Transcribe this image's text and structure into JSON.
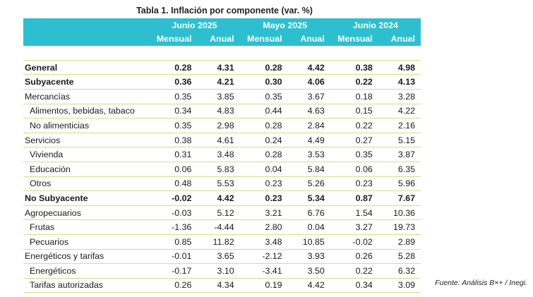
{
  "title": "Tabla 1. Inflación por componente (var. %)",
  "groups": [
    "Junio 2025",
    "Mayo 2025",
    "Junio 2024"
  ],
  "subheaders": [
    "Mensual",
    "Anual",
    "Mensual",
    "Anual",
    "Mensual",
    "Anual"
  ],
  "rows": [
    {
      "label": "General",
      "values": [
        "0.28",
        "4.31",
        "0.28",
        "4.42",
        "0.38",
        "4.98"
      ]
    },
    {
      "label": "Subyacente",
      "values": [
        "0.36",
        "4.21",
        "0.30",
        "4.06",
        "0.22",
        "4.13"
      ]
    },
    {
      "label": "Mercancías",
      "values": [
        "0.35",
        "3.85",
        "0.35",
        "3.67",
        "0.18",
        "3.28"
      ]
    },
    {
      "label": "Alimentos, bebidas, tabaco",
      "values": [
        "0.34",
        "4.83",
        "0.44",
        "4.63",
        "0.15",
        "4.22"
      ]
    },
    {
      "label": "No alimenticias",
      "values": [
        "0.35",
        "2.98",
        "0.28",
        "2.84",
        "0.22",
        "2.16"
      ]
    },
    {
      "label": "Servicios",
      "values": [
        "0.38",
        "4.61",
        "0.24",
        "4.49",
        "0.27",
        "5.15"
      ]
    },
    {
      "label": "Vivienda",
      "values": [
        "0.31",
        "3.48",
        "0.28",
        "3.53",
        "0.35",
        "3.87"
      ]
    },
    {
      "label": "Educación",
      "values": [
        "0.06",
        "5.83",
        "0.04",
        "5.84",
        "0.06",
        "6.35"
      ]
    },
    {
      "label": "Otros",
      "values": [
        "0.48",
        "5.53",
        "0.23",
        "5.26",
        "0.23",
        "5.96"
      ]
    },
    {
      "label": "No Subyacente",
      "values": [
        "-0.02",
        "4.42",
        "0.23",
        "5.34",
        "0.87",
        "7.67"
      ]
    },
    {
      "label": "Agropecuarios",
      "values": [
        "-0.03",
        "5.12",
        "3.21",
        "6.76",
        "1.54",
        "10.36"
      ]
    },
    {
      "label": "Frutas",
      "values": [
        "-1.36",
        "-4.44",
        "2.80",
        "0.04",
        "3.27",
        "19.73"
      ]
    },
    {
      "label": "Pecuarios",
      "values": [
        "0.85",
        "11.82",
        "3.48",
        "10.85",
        "-0.02",
        "2.89"
      ]
    },
    {
      "label": "Energéticos y tarifas",
      "values": [
        "-0.01",
        "3.65",
        "-2.12",
        "3.93",
        "0.26",
        "5.28"
      ]
    },
    {
      "label": "Energéticos",
      "values": [
        "-0.17",
        "3.10",
        "-3.41",
        "3.50",
        "0.22",
        "6.32"
      ]
    },
    {
      "label": "Tarifas autorizadas",
      "values": [
        "0.26",
        "4.34",
        "0.19",
        "4.42",
        "0.34",
        "3.09"
      ]
    }
  ],
  "source": "Fuente: Análisis B×+ /  Inegi."
}
